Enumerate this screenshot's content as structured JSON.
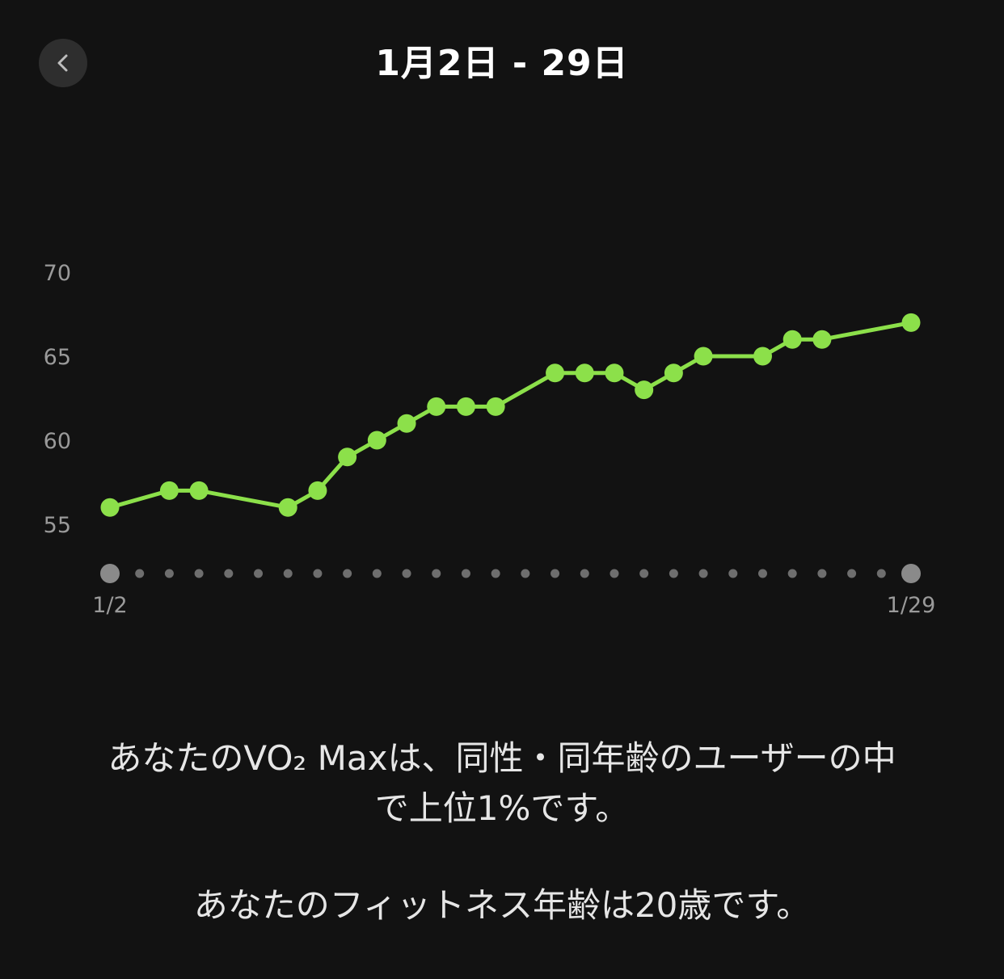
{
  "header": {
    "title": "1月2日 - 29日",
    "back_icon": "chevron-left-icon"
  },
  "chart_data": {
    "type": "line",
    "x": [
      "1/2",
      "1/3",
      "1/4",
      "1/5",
      "1/6",
      "1/7",
      "1/8",
      "1/9",
      "1/10",
      "1/11",
      "1/12",
      "1/13",
      "1/14",
      "1/15",
      "1/16",
      "1/17",
      "1/18",
      "1/19",
      "1/20",
      "1/21",
      "1/22",
      "1/23",
      "1/24",
      "1/25",
      "1/26",
      "1/27",
      "1/28",
      "1/29"
    ],
    "series": [
      {
        "values": [
          56,
          null,
          57,
          57,
          null,
          null,
          56,
          57,
          59,
          60,
          61,
          62,
          62,
          62,
          null,
          64,
          64,
          64,
          63,
          64,
          65,
          null,
          65,
          66,
          66,
          null,
          null,
          67
        ]
      }
    ],
    "x_tick_labels": [
      "1/2",
      "1/29"
    ],
    "y_ticks": [
      55,
      60,
      65,
      70
    ],
    "ylim": [
      52,
      72
    ],
    "grid": false,
    "legend": "none",
    "colors": {
      "line": "#8ce04a",
      "axis_dot": "#6e6e6e",
      "axis_endpoint": "#8a8a8a",
      "tick_label": "#9a9a9a"
    }
  },
  "messages": {
    "line1": "あなたのVO₂ Maxは、同性・同年齢のユーザーの中",
    "line2": "で上位1%です。",
    "line3": "あなたのフィットネス年齢は20歳です。"
  }
}
